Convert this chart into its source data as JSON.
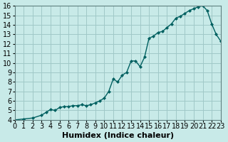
{
  "xlabel": "Humidex (Indice chaleur)",
  "ylabel": "",
  "background_color": "#c8eae8",
  "grid_color": "#a0c8c8",
  "line_color": "#006060",
  "marker_color": "#006060",
  "xlim": [
    0,
    23
  ],
  "ylim": [
    4,
    16
  ],
  "x": [
    0,
    1,
    2,
    3,
    3.5,
    4,
    4.5,
    5,
    5.5,
    6,
    6.5,
    7,
    7.5,
    8,
    8.5,
    9,
    9.5,
    10,
    10.5,
    11,
    11.5,
    12,
    12.5,
    13,
    13.5,
    14,
    14.5,
    15,
    15.5,
    16,
    16.5,
    17,
    17.5,
    18,
    18.5,
    19,
    19.5,
    20,
    20.5,
    21,
    21.5,
    22,
    22.5,
    23
  ],
  "y": [
    4.0,
    4.1,
    4.2,
    4.5,
    4.8,
    5.1,
    5.0,
    5.3,
    5.4,
    5.4,
    5.5,
    5.5,
    5.6,
    5.5,
    5.6,
    5.8,
    6.0,
    6.3,
    7.0,
    8.3,
    8.0,
    8.7,
    9.0,
    10.2,
    10.2,
    9.6,
    10.6,
    12.6,
    12.8,
    13.2,
    13.3,
    13.7,
    14.1,
    14.7,
    14.9,
    15.2,
    15.5,
    15.7,
    15.9,
    16.0,
    15.5,
    14.1,
    13.0,
    12.3
  ],
  "xticks": [
    0,
    1,
    2,
    3,
    4,
    5,
    6,
    7,
    8,
    9,
    10,
    11,
    12,
    13,
    14,
    15,
    16,
    17,
    18,
    19,
    20,
    21,
    22,
    23
  ],
  "yticks": [
    4,
    5,
    6,
    7,
    8,
    9,
    10,
    11,
    12,
    13,
    14,
    15,
    16
  ],
  "tick_fontsize": 7,
  "xlabel_fontsize": 8
}
